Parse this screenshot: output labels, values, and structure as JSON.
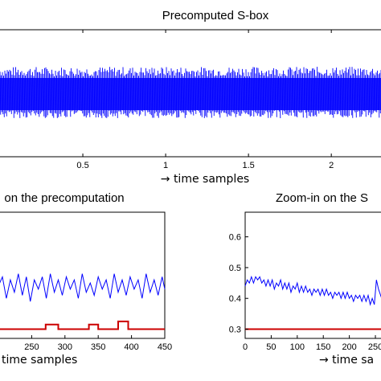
{
  "chart_data": [
    {
      "id": "top",
      "type": "line",
      "title": "Precomputed S-box",
      "xlabel": "→ time samples",
      "x_ticks": [
        "0.5",
        "1",
        "1.5",
        "2"
      ],
      "x_tick_values": [
        0.5,
        1,
        1.5,
        2
      ],
      "xlim": [
        0.0,
        2.3
      ],
      "series": [
        {
          "color": "#0000ff",
          "style": "dense oscillation (envelope)",
          "baseline": 0.0,
          "amplitude": 1.0
        }
      ],
      "grid": false
    },
    {
      "id": "bottom-left",
      "type": "line",
      "title": "on the precomputation",
      "xlabel": "time samples",
      "x_ticks": [
        "250",
        "300",
        "350",
        "400",
        "450"
      ],
      "x_tick_values": [
        250,
        300,
        350,
        400,
        450
      ],
      "xlim": [
        200,
        450
      ],
      "series": [
        {
          "color": "#0000ff",
          "values_x": [
            200,
            206,
            212,
            218,
            224,
            230,
            236,
            242,
            248,
            254,
            260,
            266,
            272,
            278,
            284,
            290,
            296,
            302,
            308,
            314,
            320,
            326,
            332,
            338,
            344,
            350,
            356,
            362,
            368,
            374,
            380,
            386,
            392,
            398,
            404,
            410,
            416,
            422,
            428,
            434,
            440,
            446,
            450
          ],
          "values_y": [
            0.44,
            0.47,
            0.4,
            0.46,
            0.42,
            0.48,
            0.41,
            0.47,
            0.39,
            0.46,
            0.43,
            0.47,
            0.4,
            0.48,
            0.42,
            0.46,
            0.41,
            0.47,
            0.43,
            0.46,
            0.4,
            0.48,
            0.42,
            0.45,
            0.41,
            0.47,
            0.43,
            0.46,
            0.4,
            0.48,
            0.42,
            0.46,
            0.41,
            0.47,
            0.43,
            0.46,
            0.4,
            0.48,
            0.42,
            0.46,
            0.41,
            0.47,
            0.43
          ]
        },
        {
          "color": "#cc0000",
          "values_x": [
            200,
            271,
            271,
            290,
            290,
            300,
            300,
            336,
            336,
            350,
            350,
            380,
            380,
            395,
            395,
            450
          ],
          "values_y": [
            0.3,
            0.3,
            0.315,
            0.315,
            0.3,
            0.3,
            0.3,
            0.3,
            0.315,
            0.315,
            0.3,
            0.3,
            0.325,
            0.325,
            0.3,
            0.3
          ]
        }
      ],
      "ylim": [
        0.27,
        0.68
      ]
    },
    {
      "id": "bottom-right",
      "type": "line",
      "title": "Zoom-in on the S",
      "xlabel": "→ time sa",
      "x_ticks": [
        "0",
        "50",
        "100",
        "150",
        "200",
        "250"
      ],
      "x_tick_values": [
        0,
        50,
        100,
        150,
        200,
        250
      ],
      "y_ticks": [
        "0.3",
        "0.4",
        "0.5",
        "0.6"
      ],
      "y_tick_values": [
        0.3,
        0.4,
        0.5,
        0.6
      ],
      "xlim": [
        0,
        270
      ],
      "ylim": [
        0.27,
        0.68
      ],
      "series": [
        {
          "color": "#0000ff",
          "values_x": [
            0,
            4,
            8,
            12,
            16,
            20,
            24,
            28,
            32,
            36,
            40,
            44,
            48,
            52,
            56,
            60,
            64,
            68,
            72,
            76,
            80,
            84,
            88,
            92,
            96,
            100,
            104,
            108,
            112,
            116,
            120,
            124,
            128,
            132,
            136,
            140,
            144,
            148,
            152,
            156,
            160,
            164,
            168,
            172,
            176,
            180,
            184,
            188,
            192,
            196,
            200,
            204,
            208,
            212,
            216,
            220,
            224,
            228,
            232,
            236,
            240,
            244,
            248,
            252,
            256,
            260,
            264,
            268
          ],
          "values_y": [
            0.44,
            0.46,
            0.45,
            0.47,
            0.45,
            0.47,
            0.46,
            0.47,
            0.45,
            0.46,
            0.44,
            0.46,
            0.44,
            0.46,
            0.43,
            0.45,
            0.44,
            0.46,
            0.43,
            0.45,
            0.43,
            0.45,
            0.42,
            0.44,
            0.43,
            0.45,
            0.42,
            0.44,
            0.42,
            0.44,
            0.42,
            0.43,
            0.41,
            0.43,
            0.42,
            0.43,
            0.41,
            0.43,
            0.41,
            0.43,
            0.41,
            0.42,
            0.4,
            0.42,
            0.41,
            0.42,
            0.4,
            0.42,
            0.4,
            0.42,
            0.4,
            0.41,
            0.39,
            0.41,
            0.4,
            0.41,
            0.39,
            0.41,
            0.39,
            0.41,
            0.38,
            0.4,
            0.38,
            0.46,
            0.43,
            0.41,
            0.39,
            0.4
          ]
        },
        {
          "color": "#cc0000",
          "values_x": [
            0,
            270
          ],
          "values_y": [
            0.3,
            0.3
          ]
        }
      ]
    }
  ]
}
